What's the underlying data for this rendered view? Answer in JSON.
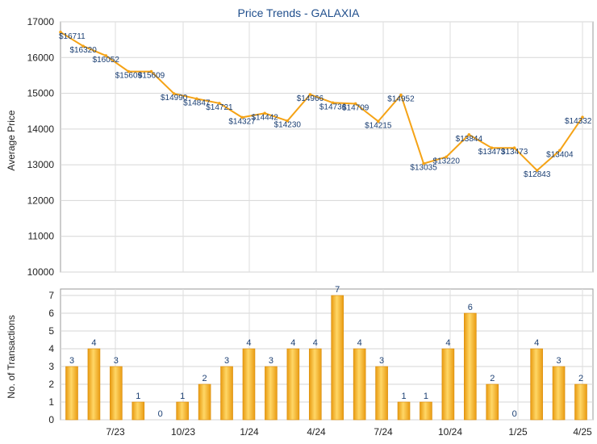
{
  "chart_data": [
    {
      "type": "line",
      "title": "Price Trends - GALAXIA",
      "ylabel": "Average Price",
      "ylim": [
        10000,
        17000
      ],
      "yticks": [
        10000,
        11000,
        12000,
        13000,
        14000,
        15000,
        16000,
        17000
      ],
      "grid": true,
      "color": "#f5a316",
      "values": [
        16711,
        16320,
        16052,
        15609,
        15609,
        14990,
        14847,
        14721,
        14327,
        14442,
        14230,
        14966,
        14736,
        14709,
        14215,
        14952,
        13035,
        13220,
        13844,
        13473,
        13473,
        12843,
        13404,
        14332
      ],
      "labels": [
        "$16711",
        "$16320",
        "$16052",
        "$15609",
        "$15609",
        "$14990",
        "$14847",
        "$14721",
        "$14327",
        "$14442",
        "$14230",
        "$14966",
        "$14736",
        "$14709",
        "$14215",
        "$14952",
        "$13035",
        "$13220",
        "$13844",
        "$13473",
        "$13473",
        "$12843",
        "$13404",
        "$14332"
      ]
    },
    {
      "type": "bar",
      "ylabel": "No. of Transactions",
      "ylim": [
        0,
        7
      ],
      "yticks": [
        0,
        1,
        2,
        3,
        4,
        5,
        6,
        7
      ],
      "grid": true,
      "color": "#f5a316",
      "values": [
        3,
        4,
        3,
        1,
        0,
        1,
        2,
        3,
        4,
        3,
        4,
        4,
        7,
        4,
        3,
        1,
        1,
        4,
        6,
        2,
        0,
        4,
        3,
        2
      ],
      "xtick_labels": [
        "7/23",
        "10/23",
        "1/24",
        "4/24",
        "7/24",
        "10/24",
        "1/25",
        "4/25"
      ]
    }
  ]
}
